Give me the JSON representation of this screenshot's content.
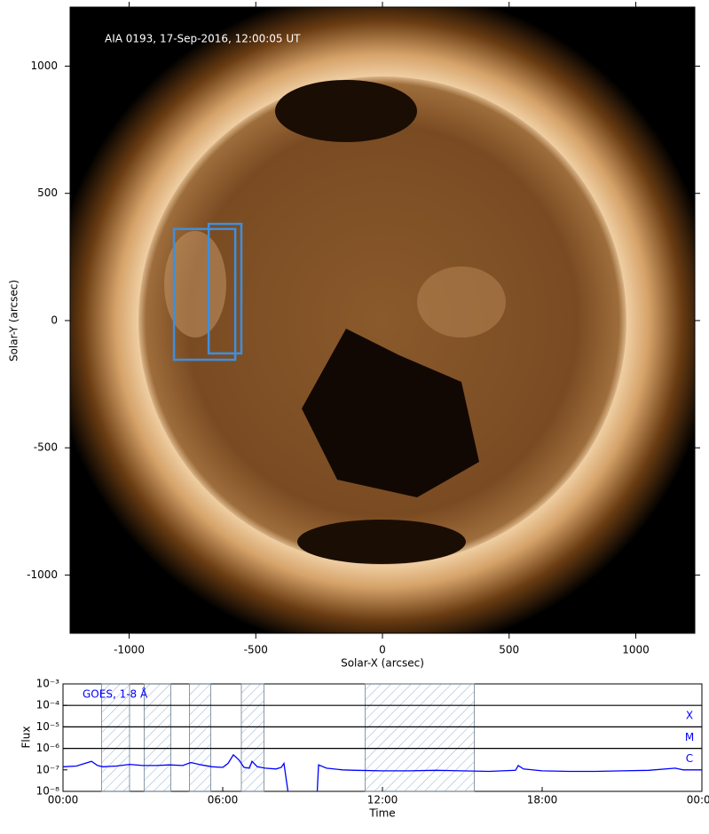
{
  "chart_data": [
    {
      "type": "image",
      "annotation": "AIA 0193, 17-Sep-2016, 12:00:05 UT",
      "xlabel": "Solar-X (arcsec)",
      "ylabel": "Solar-Y (arcsec)",
      "xlim": [
        -1233,
        1233
      ],
      "ylim": [
        -1229,
        1232
      ],
      "xticks": [
        -1000,
        -500,
        0,
        500,
        1000
      ],
      "yticks": [
        -1000,
        -500,
        0,
        500,
        1000
      ],
      "boxes": [
        {
          "x": [
            -823,
            -581
          ],
          "y": [
            -154,
            360
          ]
        },
        {
          "x": [
            -686,
            -557
          ],
          "y": [
            -129,
            380
          ]
        }
      ],
      "box_color": "#3d8fe0"
    },
    {
      "type": "line",
      "xlabel": "Time",
      "ylabel": "Flux",
      "log_scale": true,
      "xlim": [
        0,
        24
      ],
      "ylim": [
        1e-08,
        0.001
      ],
      "xticks": [
        {
          "value": 0,
          "label": "00:00"
        },
        {
          "value": 6,
          "label": "06:00"
        },
        {
          "value": 12,
          "label": "12:00"
        },
        {
          "value": 18,
          "label": "18:00"
        },
        {
          "value": 24,
          "label": "00:00"
        }
      ],
      "yticks": [
        {
          "value": 1e-08,
          "label": "10⁻⁸"
        },
        {
          "value": 1e-07,
          "label": "10⁻⁷"
        },
        {
          "value": 1e-06,
          "label": "10⁻⁶"
        },
        {
          "value": 1e-05,
          "label": "10⁻⁵"
        },
        {
          "value": 0.0001,
          "label": "10⁻⁴"
        },
        {
          "value": 0.001,
          "label": "10⁻³"
        }
      ],
      "levels": [
        {
          "value": 0.0001,
          "label": "X"
        },
        {
          "value": 1e-05,
          "label": "M"
        },
        {
          "value": 1e-06,
          "label": "C"
        }
      ],
      "intervals": [
        [
          1.45,
          2.5
        ],
        [
          3.05,
          4.05
        ],
        [
          4.75,
          5.55
        ],
        [
          6.7,
          7.55
        ],
        [
          11.35,
          15.45
        ]
      ],
      "x": [
        0,
        0.5,
        1.07,
        1.3,
        1.5,
        2,
        2.5,
        3,
        3.5,
        4,
        4.5,
        4.8,
        5.2,
        5.6,
        6,
        6.2,
        6.4,
        6.6,
        6.8,
        7,
        7.1,
        7.3,
        7.6,
        8,
        8.2,
        8.3,
        8.45,
        9,
        9.55,
        9.6,
        9.9,
        10.5,
        11,
        12,
        13,
        14,
        15,
        16,
        17,
        17.1,
        17.3,
        18,
        19,
        20,
        21,
        22,
        23,
        23.3,
        24
      ],
      "series": [
        {
          "name": "GOES, 1-8 Å",
          "color": "#0000ff",
          "values": [
            1.4e-07,
            1.5e-07,
            2.5e-07,
            1.6e-07,
            1.4e-07,
            1.5e-07,
            1.8e-07,
            1.6e-07,
            1.6e-07,
            1.7e-07,
            1.6e-07,
            2.2e-07,
            1.7e-07,
            1.4e-07,
            1.3e-07,
            2e-07,
            5e-07,
            3e-07,
            1.3e-07,
            1.2e-07,
            2.5e-07,
            1.4e-07,
            1.2e-07,
            1.1e-07,
            1.3e-07,
            2e-07,
            1e-08,
            null,
            1e-08,
            1.7e-07,
            1.2e-07,
            1e-07,
            9.5e-08,
            9e-08,
            9e-08,
            9.5e-08,
            9e-08,
            8.5e-08,
            9.5e-08,
            1.6e-07,
            1.1e-07,
            9e-08,
            8.5e-08,
            8.5e-08,
            9e-08,
            9.5e-08,
            1.2e-07,
            1e-07,
            1e-07
          ]
        }
      ]
    }
  ]
}
